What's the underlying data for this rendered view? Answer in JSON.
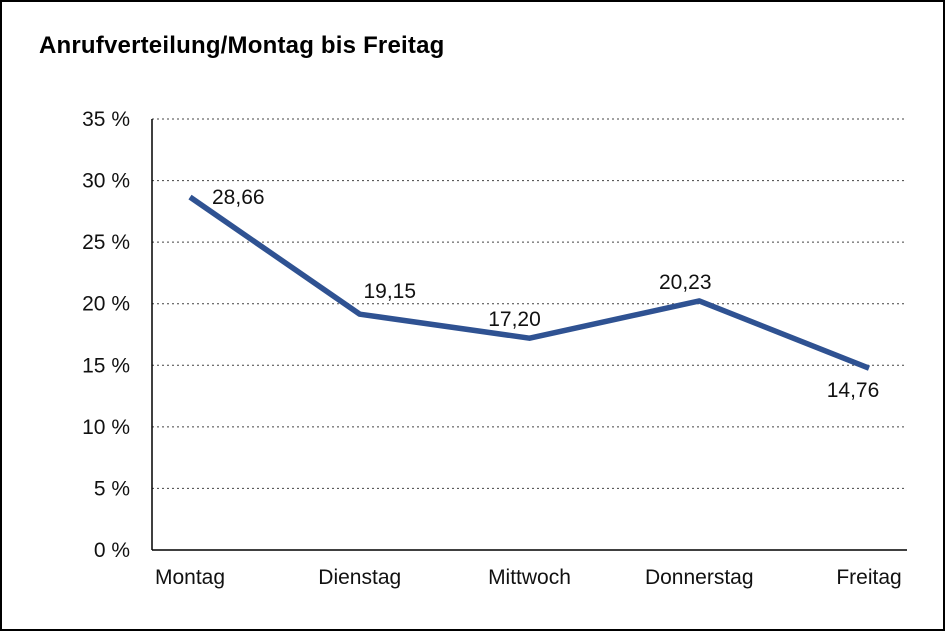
{
  "title": "Anrufverteilung/Montag bis Freitag",
  "chart_data": {
    "type": "line",
    "title": "Anrufverteilung/Montag bis Freitag",
    "categories": [
      "Montag",
      "Dienstag",
      "Mittwoch",
      "Donnerstag",
      "Freitag"
    ],
    "values": [
      28.66,
      19.15,
      17.2,
      20.23,
      14.76
    ],
    "value_labels": [
      "28,66",
      "19,15",
      "17,20",
      "20,23",
      "14,76"
    ],
    "xlabel": "",
    "ylabel": "",
    "ylim": [
      0,
      35
    ],
    "y_tick_step": 5,
    "y_tick_labels": [
      "0 %",
      "5 %",
      "10 %",
      "15 %",
      "20 %",
      "25 %",
      "30 %",
      "35 %"
    ],
    "grid": "dotted-horizontal",
    "legend": "none",
    "line_color": "#2f5292",
    "background_color": "#ffffff",
    "border_color": "#000000"
  }
}
